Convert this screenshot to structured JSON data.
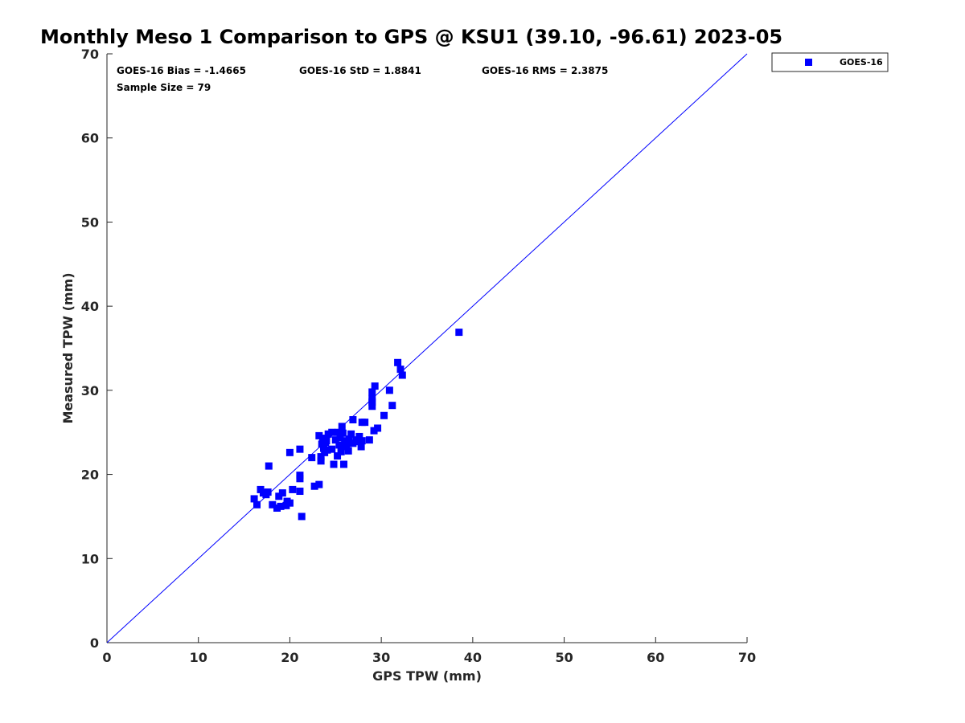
{
  "chart_data": {
    "type": "scatter",
    "title": "Monthly Meso 1 Comparison to GPS @ KSU1 (39.10, -96.61) 2023-05",
    "xlabel": "GPS TPW (mm)",
    "ylabel": "Measured TPW (mm)",
    "xlim": [
      0,
      70
    ],
    "ylim": [
      0,
      70
    ],
    "xticks": [
      "0",
      "10",
      "20",
      "30",
      "40",
      "50",
      "60",
      "70"
    ],
    "yticks": [
      "0",
      "10",
      "20",
      "30",
      "40",
      "50",
      "60",
      "70"
    ],
    "grid": false,
    "legend_position": "outside top-right",
    "annotations": {
      "bias": "GOES-16 Bias = -1.4665",
      "std": "GOES-16 StD = 1.8841",
      "rms": "GOES-16 RMS = 2.3875",
      "sample": "Sample Size = 79"
    },
    "reference_line": {
      "type": "one-to-one",
      "x": [
        0,
        70
      ],
      "y": [
        0,
        70
      ],
      "color": "#0000ff"
    },
    "series": [
      {
        "name": "GOES-16",
        "color": "#0000ff",
        "marker": "square",
        "points": [
          [
            16.1,
            17.1
          ],
          [
            16.4,
            16.4
          ],
          [
            16.8,
            18.2
          ],
          [
            17.1,
            17.8
          ],
          [
            17.4,
            17.6
          ],
          [
            17.6,
            17.9
          ],
          [
            17.7,
            21.0
          ],
          [
            18.1,
            16.4
          ],
          [
            18.6,
            16.0
          ],
          [
            18.8,
            17.4
          ],
          [
            19.0,
            16.2
          ],
          [
            19.2,
            17.8
          ],
          [
            19.6,
            16.3
          ],
          [
            19.7,
            16.8
          ],
          [
            20.0,
            16.6
          ],
          [
            20.0,
            22.6
          ],
          [
            20.3,
            18.2
          ],
          [
            21.1,
            18.0
          ],
          [
            21.1,
            19.5
          ],
          [
            21.1,
            19.9
          ],
          [
            21.1,
            23.0
          ],
          [
            21.3,
            15.0
          ],
          [
            22.7,
            18.6
          ],
          [
            23.2,
            18.8
          ],
          [
            23.2,
            24.6
          ],
          [
            23.4,
            22.1
          ],
          [
            23.4,
            21.6
          ],
          [
            23.5,
            23.6
          ],
          [
            23.6,
            24.3
          ],
          [
            23.7,
            23.1
          ],
          [
            23.8,
            22.6
          ],
          [
            24.1,
            22.9
          ],
          [
            24.2,
            24.8
          ],
          [
            24.6,
            25.0
          ],
          [
            24.6,
            23.0
          ],
          [
            24.8,
            21.2
          ],
          [
            25.0,
            24.1
          ],
          [
            25.2,
            22.2
          ],
          [
            25.4,
            23.5
          ],
          [
            25.5,
            24.4
          ],
          [
            25.7,
            25.7
          ],
          [
            25.8,
            24.9
          ],
          [
            25.8,
            23.3
          ],
          [
            25.9,
            21.2
          ],
          [
            26.0,
            24.0
          ],
          [
            26.1,
            23.7
          ],
          [
            26.4,
            22.8
          ],
          [
            26.7,
            24.8
          ],
          [
            26.9,
            23.7
          ],
          [
            26.9,
            26.5
          ],
          [
            27.3,
            24.1
          ],
          [
            27.6,
            24.5
          ],
          [
            27.8,
            23.3
          ],
          [
            27.9,
            24.0
          ],
          [
            27.9,
            26.2
          ],
          [
            28.2,
            26.2
          ],
          [
            28.7,
            24.1
          ],
          [
            29.0,
            28.1
          ],
          [
            29.0,
            28.6
          ],
          [
            29.0,
            29.0
          ],
          [
            29.0,
            29.8
          ],
          [
            29.2,
            25.2
          ],
          [
            29.3,
            30.5
          ],
          [
            29.6,
            25.5
          ],
          [
            30.3,
            27.0
          ],
          [
            30.9,
            30.0
          ],
          [
            31.2,
            28.2
          ],
          [
            31.8,
            33.3
          ],
          [
            32.1,
            32.5
          ],
          [
            32.3,
            31.8
          ],
          [
            38.5,
            36.9
          ],
          [
            22.4,
            22.0
          ],
          [
            24.0,
            24.0
          ],
          [
            25.3,
            25.0
          ],
          [
            26.5,
            24.2
          ],
          [
            27.4,
            23.9
          ],
          [
            23.9,
            23.8
          ],
          [
            25.6,
            22.7
          ],
          [
            26.2,
            23.4
          ]
        ]
      }
    ]
  }
}
